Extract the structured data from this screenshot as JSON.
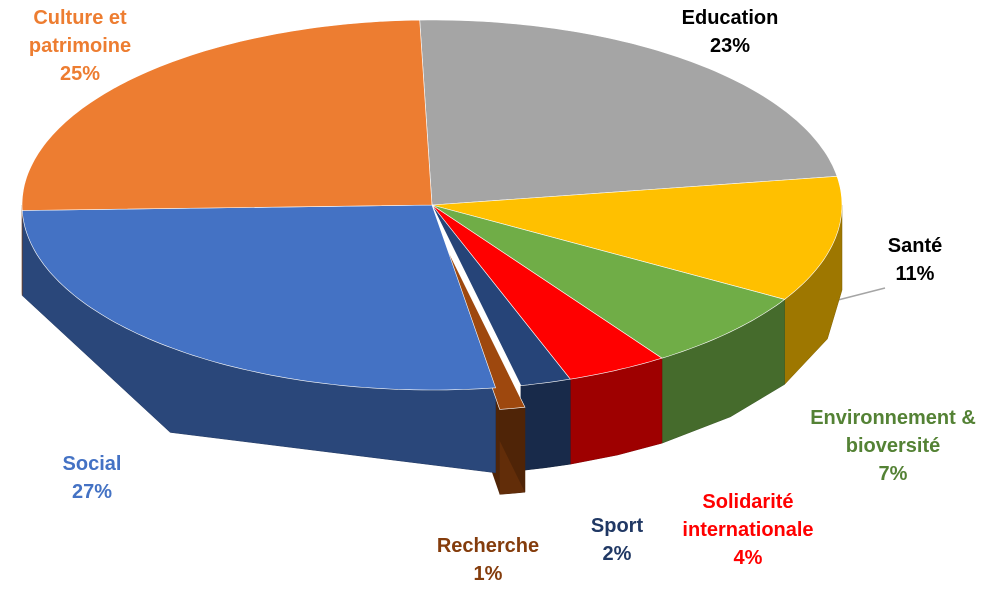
{
  "chart_data": {
    "type": "pie3d",
    "categories": [
      "Education",
      "Santé",
      "Environnement & bioversité",
      "Solidarité internationale",
      "Sport",
      "Recherche",
      "Social",
      "Culture et patrimoine"
    ],
    "values": [
      23,
      11,
      7,
      4,
      2,
      1,
      27,
      25
    ],
    "value_labels": [
      "23%",
      "11%",
      "7%",
      "4%",
      "2%",
      "1%",
      "27%",
      "25%"
    ],
    "colors": [
      "#a5a5a5",
      "#ffc000",
      "#70ad47",
      "#ff0000",
      "#264478",
      "#9e480e",
      "#4472c4",
      "#ed7d31"
    ],
    "label_colors": [
      "#000000",
      "#000000",
      "#548235",
      "#ff0000",
      "#203864",
      "#843c0c",
      "#4472c4",
      "#ed7d31"
    ],
    "exploded": [
      5
    ]
  }
}
